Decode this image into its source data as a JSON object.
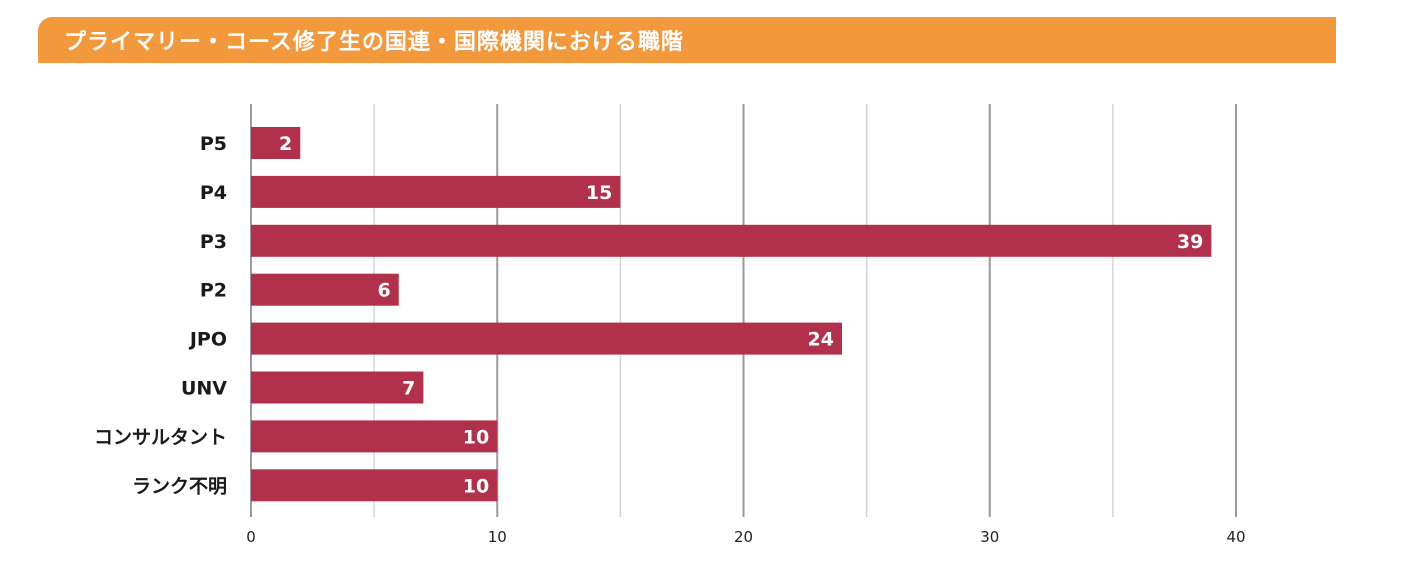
{
  "header": {
    "title": "プライマリー・コース修了生の国連・国際機関における職階"
  },
  "colors": {
    "header_bg": "#f2983d",
    "bar": "#b1304b",
    "grid": "#d4d4d4",
    "axis": "#9a9a9a"
  },
  "chart_data": {
    "type": "bar",
    "orientation": "horizontal",
    "title": "プライマリー・コース修了生の国連・国際機関における職階",
    "categories": [
      "P5",
      "P4",
      "P3",
      "P2",
      "JPO",
      "UNV",
      "コンサルタント",
      "ランク不明"
    ],
    "values": [
      2,
      15,
      39,
      6,
      24,
      7,
      10,
      10
    ],
    "xlim": [
      0,
      40
    ],
    "xticks": [
      0,
      10,
      20,
      30,
      40
    ],
    "grid_step": 5,
    "grid": true,
    "data_labels": true,
    "xlabel": "",
    "ylabel": ""
  }
}
